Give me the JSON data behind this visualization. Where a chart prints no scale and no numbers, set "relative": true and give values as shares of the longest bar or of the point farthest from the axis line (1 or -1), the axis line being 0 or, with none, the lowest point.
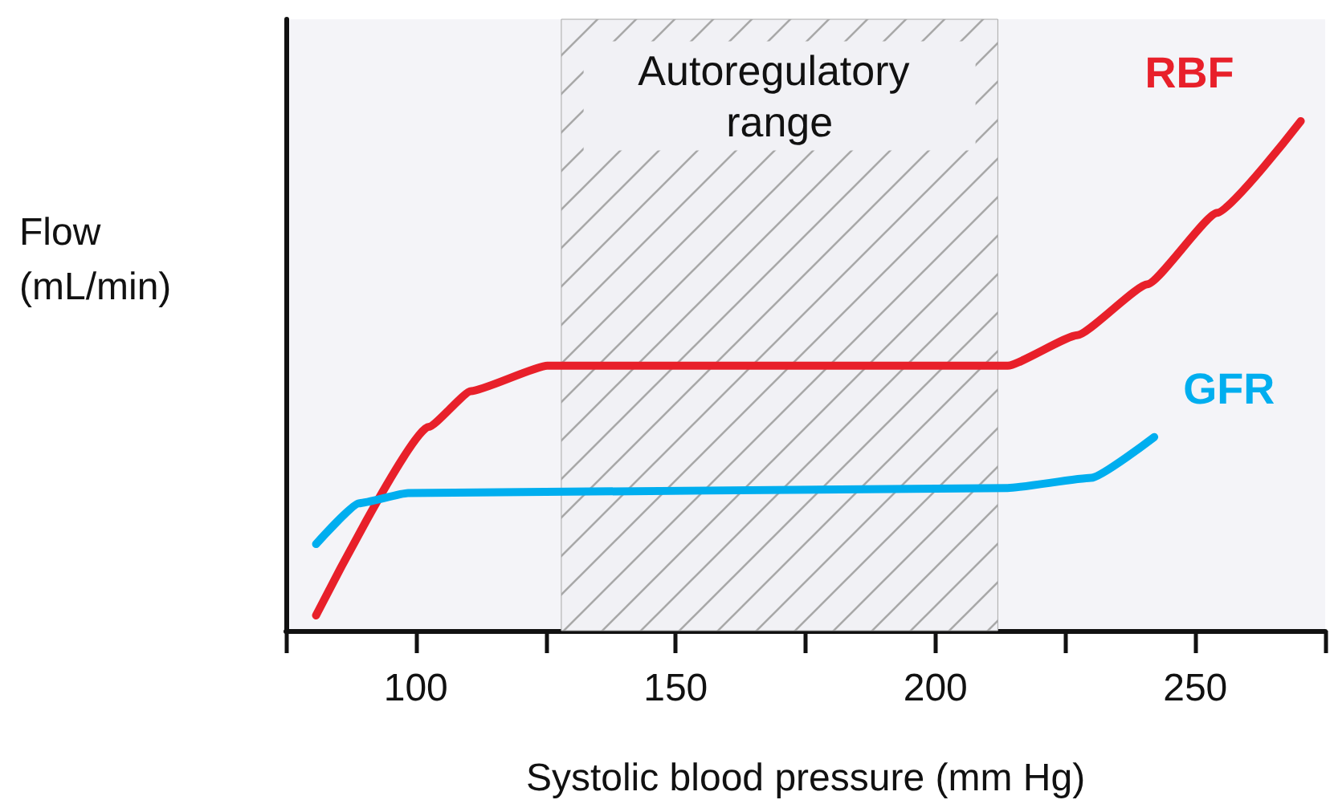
{
  "chart_data": {
    "type": "line",
    "relative": true,
    "xlabel": "Systolic blood pressure (mm Hg)",
    "ylabel": "Flow\n(mL/min)",
    "xlim": [
      75,
      275
    ],
    "xticks": [
      {
        "value": 75,
        "label": null
      },
      100,
      {
        "value": 125,
        "label": null
      },
      150,
      {
        "value": 175,
        "label": null
      },
      200,
      {
        "value": 225,
        "label": null
      },
      250,
      {
        "value": 275,
        "label": null
      }
    ],
    "marker": "none",
    "line_style": "solid",
    "grid": false,
    "legend": false,
    "bands": [
      {
        "axis": "x",
        "from": 128,
        "to": 212,
        "label": "Autoregulatory range",
        "color": "#a8a8a8"
      }
    ],
    "series": [
      {
        "name": "RBF",
        "color": "#e8202a",
        "x": [
          80.8,
          102.5,
          110.6,
          125.3,
          213.9,
          227.3,
          240.8,
          254.2,
          270.3
        ],
        "values": [
          0.03,
          0.4,
          0.47,
          0.52,
          0.52,
          0.58,
          0.68,
          0.82,
          1
        ]
      },
      {
        "name": "GFR",
        "color": "#00aeef",
        "x": [
          80.8,
          89.1,
          98.5,
          213.9,
          230,
          242.1
        ],
        "values": [
          0.17,
          0.25,
          0.27,
          0.28,
          0.3,
          0.38
        ]
      }
    ]
  }
}
